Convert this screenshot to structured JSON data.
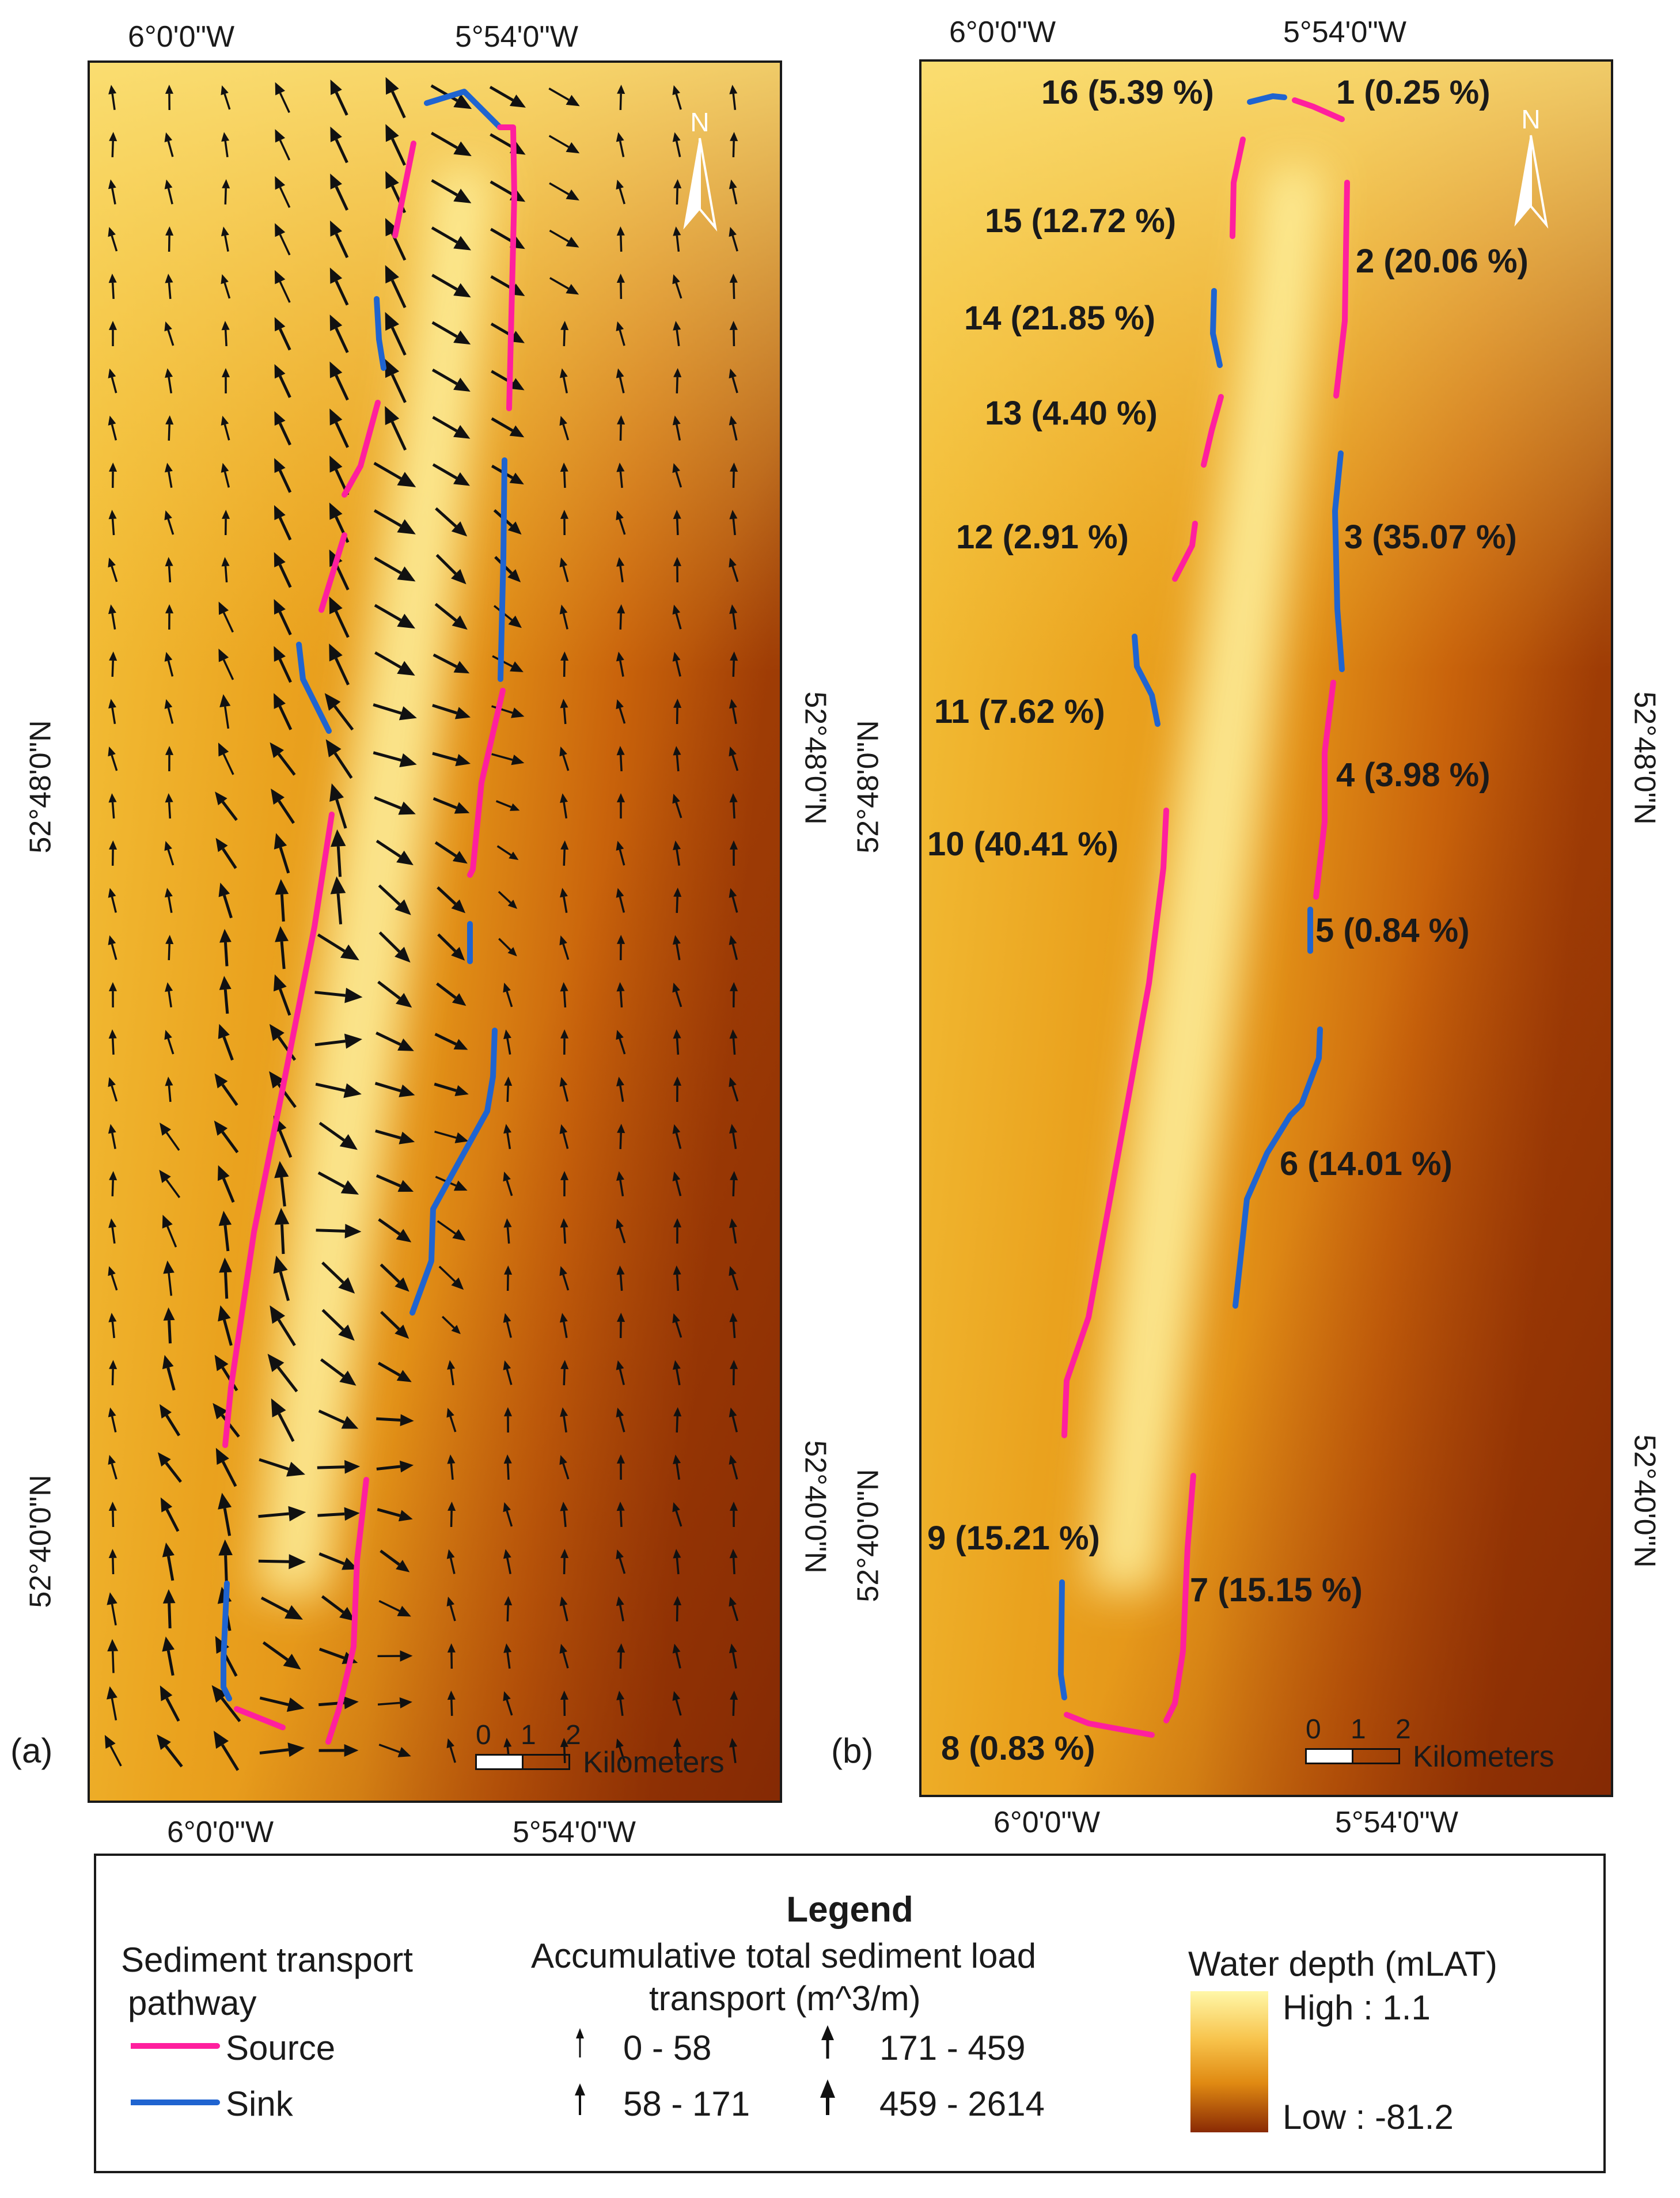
{
  "panels": {
    "a": {
      "label": "(a)",
      "top_lon_labels": [
        "6°0'0\"W",
        "5°54'0\"W"
      ],
      "bottom_lon_labels": [
        "6°0'0\"W",
        "5°54'0\"W"
      ],
      "left_lat_labels": [
        "52°48'0\"N",
        "52°40'0\"N"
      ],
      "right_lat_labels": [
        "52°48'0\"N",
        "52°40'0\"N"
      ]
    },
    "b": {
      "label": "(b)",
      "top_lon_labels": [
        "6°0'0\"W",
        "5°54'0\"W"
      ],
      "bottom_lon_labels": [
        "6°0'0\"W",
        "5°54'0\"W"
      ],
      "left_lat_labels": [
        "52°48'0\"N",
        "52°40'0\"N"
      ],
      "right_lat_labels": [
        "52°48'0\"N",
        "52°40'0\"N"
      ],
      "segments": [
        {
          "text": "16 (5.39 %)",
          "type": "sink"
        },
        {
          "text": "1 (0.25 %)",
          "type": "source"
        },
        {
          "text": "15 (12.72 %)",
          "type": "source"
        },
        {
          "text": "2 (20.06 %)",
          "type": "source"
        },
        {
          "text": "14 (21.85 %)",
          "type": "sink"
        },
        {
          "text": "13 (4.40 %)",
          "type": "source"
        },
        {
          "text": "12 (2.91 %)",
          "type": "source"
        },
        {
          "text": "3 (35.07 %)",
          "type": "sink"
        },
        {
          "text": "11 (7.62 %)",
          "type": "sink"
        },
        {
          "text": "4 (3.98 %)",
          "type": "source"
        },
        {
          "text": "10 (40.41 %)",
          "type": "source"
        },
        {
          "text": "5 (0.84 %)",
          "type": "sink"
        },
        {
          "text": "6 (14.01 %)",
          "type": "sink"
        },
        {
          "text": "9 (15.21 %)",
          "type": "sink"
        },
        {
          "text": "7 (15.15 %)",
          "type": "source"
        },
        {
          "text": "8 (0.83 %)",
          "type": "source"
        }
      ]
    }
  },
  "north_arrow": {
    "letter": "N",
    "icon": "north-arrow-icon"
  },
  "scale_bar": {
    "ticks": [
      "0",
      "1",
      "2"
    ],
    "unit": "Kilometers"
  },
  "legend": {
    "title": "Legend",
    "pathway_title_line1": "Sediment transport",
    "pathway_title_line2": "pathway",
    "source_label": "Source",
    "sink_label": "Sink",
    "transport_title_line1": "Accumulative total sediment load",
    "transport_title_line2": "transport (m^3/m)",
    "transport_classes": [
      "0 - 58",
      "58 - 171",
      "171 - 459",
      "459 - 2614"
    ],
    "depth_title": "Water depth (mLAT)",
    "depth_high": "High : 1.1",
    "depth_low": "Low : -81.2"
  },
  "colors": {
    "source": "#ff1f9e",
    "sink": "#1f64d0",
    "depth_high": "#fff7a8",
    "depth_low": "#8a2a04",
    "arrow": "#111111"
  }
}
